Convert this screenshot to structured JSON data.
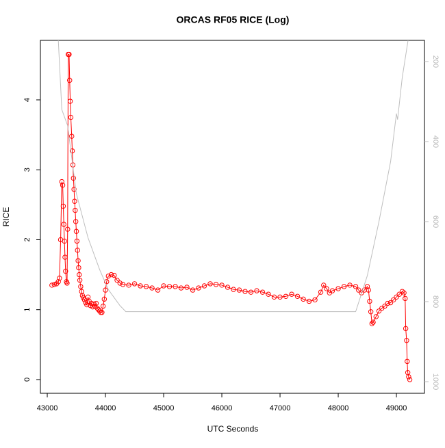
{
  "chart_data": {
    "type": "line",
    "title": "ORCAS RF05 RICE (Log)",
    "x_label": "UTC Seconds",
    "y_label": "RICE",
    "xlim": [
      42882,
      49482
    ],
    "ylim": [
      -0.196,
      4.851
    ],
    "y2lim": [
      1029,
      147
    ],
    "xticks": [
      43000,
      44000,
      45000,
      46000,
      47000,
      48000,
      49000
    ],
    "yticks": [
      0,
      1,
      2,
      3,
      4
    ],
    "y2ticks": [
      200,
      400,
      600,
      800,
      1000
    ],
    "series": [
      {
        "color": "#ff0000",
        "markers": true,
        "x": [
          43080,
          43120,
          43160,
          43190,
          43210,
          43230,
          43250,
          43265,
          43275,
          43285,
          43295,
          43305,
          43315,
          43330,
          43340,
          43350,
          43360,
          43375,
          43385,
          43395,
          43405,
          43420,
          43430,
          43440,
          43450,
          43460,
          43470,
          43480,
          43490,
          43500,
          43510,
          43520,
          43530,
          43540,
          43550,
          43560,
          43575,
          43590,
          43605,
          43620,
          43640,
          43660,
          43680,
          43700,
          43720,
          43740,
          43760,
          43780,
          43800,
          43820,
          43840,
          43860,
          43880,
          43900,
          43920,
          43940,
          43960,
          43980,
          44000,
          44020,
          44050,
          44100,
          44150,
          44200,
          44250,
          44300,
          44400,
          44500,
          44600,
          44700,
          44800,
          44900,
          45000,
          45100,
          45200,
          45300,
          45400,
          45500,
          45600,
          45700,
          45800,
          45900,
          46000,
          46100,
          46200,
          46300,
          46400,
          46500,
          46600,
          46700,
          46800,
          46900,
          47000,
          47100,
          47200,
          47300,
          47400,
          47500,
          47600,
          47700,
          47750,
          47800,
          47850,
          47900,
          48000,
          48100,
          48200,
          48300,
          48350,
          48400,
          48450,
          48500,
          48520,
          48540,
          48560,
          48580,
          48600,
          48650,
          48700,
          48750,
          48800,
          48850,
          48900,
          48950,
          49000,
          49050,
          49100,
          49130,
          49150,
          49160,
          49175,
          49185,
          49195,
          49210,
          49230
        ],
        "values": [
          1.35,
          1.36,
          1.37,
          1.4,
          1.45,
          2.0,
          2.83,
          2.78,
          2.48,
          2.22,
          1.98,
          1.75,
          1.55,
          1.4,
          1.38,
          2.15,
          4.65,
          4.65,
          4.28,
          3.98,
          3.75,
          3.48,
          3.27,
          3.07,
          2.88,
          2.72,
          2.55,
          2.42,
          2.26,
          2.12,
          1.98,
          1.85,
          1.7,
          1.6,
          1.5,
          1.42,
          1.33,
          1.26,
          1.2,
          1.17,
          1.14,
          1.1,
          1.07,
          1.18,
          1.12,
          1.06,
          1.09,
          1.04,
          1.08,
          1.05,
          1.09,
          1.02,
          1.0,
          0.98,
          0.96,
          0.96,
          1.05,
          1.15,
          1.28,
          1.4,
          1.48,
          1.5,
          1.49,
          1.42,
          1.38,
          1.36,
          1.35,
          1.37,
          1.34,
          1.33,
          1.31,
          1.28,
          1.34,
          1.33,
          1.33,
          1.31,
          1.32,
          1.28,
          1.31,
          1.34,
          1.37,
          1.36,
          1.35,
          1.32,
          1.29,
          1.28,
          1.26,
          1.25,
          1.27,
          1.25,
          1.22,
          1.18,
          1.18,
          1.19,
          1.22,
          1.19,
          1.15,
          1.12,
          1.14,
          1.25,
          1.35,
          1.3,
          1.24,
          1.27,
          1.3,
          1.33,
          1.35,
          1.33,
          1.28,
          1.24,
          1.28,
          1.33,
          1.28,
          1.12,
          0.97,
          0.8,
          0.82,
          0.9,
          0.98,
          1.02,
          1.05,
          1.09,
          1.1,
          1.14,
          1.18,
          1.22,
          1.26,
          1.24,
          1.16,
          0.73,
          0.56,
          0.26,
          0.1,
          0.04,
          0.0
        ]
      },
      {
        "color": "#bebebe",
        "markers": false,
        "axis": "y2",
        "x": [
          43190,
          43250,
          43350,
          43500,
          43700,
          43900,
          44050,
          44250,
          44350,
          48300,
          48500,
          48700,
          48900,
          49000,
          49020,
          49100,
          49200
        ],
        "values": [
          147,
          320,
          360,
          530,
          640,
          720,
          770,
          810,
          825,
          825,
          735,
          600,
          450,
          330,
          345,
          240,
          147
        ]
      }
    ]
  }
}
